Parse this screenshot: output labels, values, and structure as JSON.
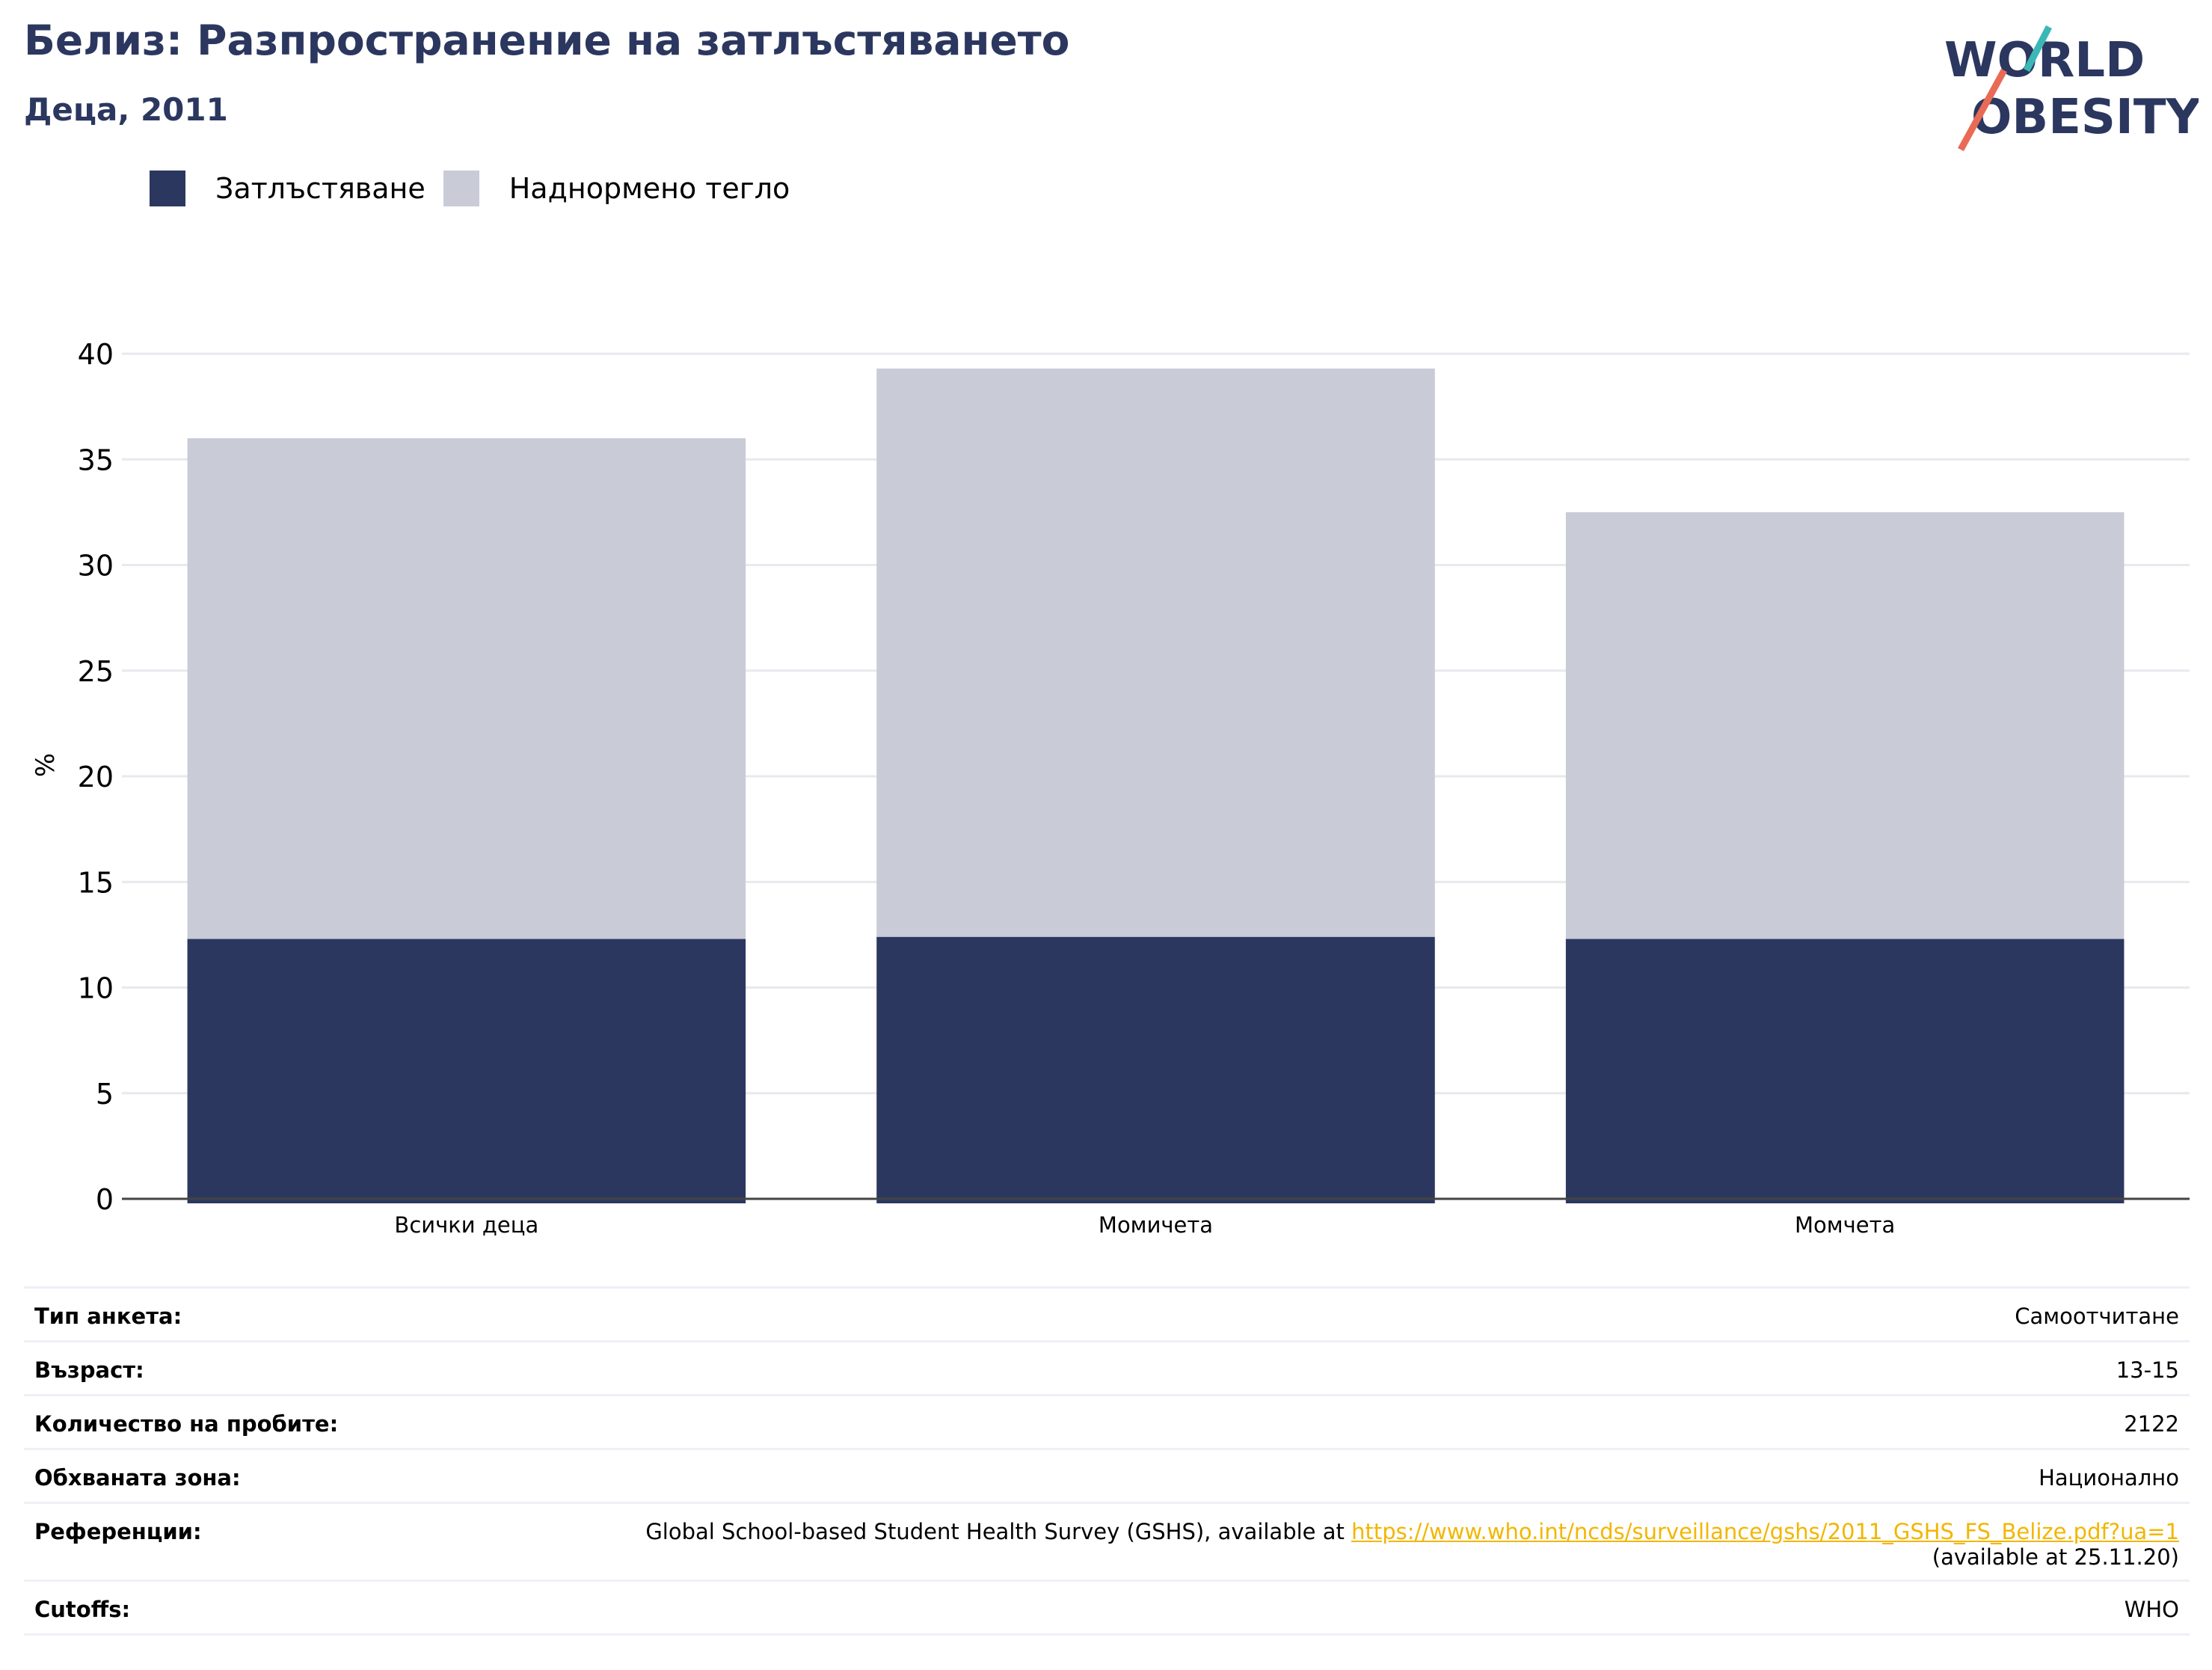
{
  "header": {
    "title": "Белиз: Разпространение на затлъстяването",
    "subtitle": "Деца, 2011"
  },
  "logo": {
    "line1": "WORLD",
    "line2": "OBESITY"
  },
  "colors": {
    "obesity": "#2b375f",
    "overweight": "#c9cbd6",
    "title": "#2b375f",
    "grid": "#e8e9ee",
    "axis": "#444444",
    "link": "#f2b600",
    "logo_teal": "#3bb8b5",
    "logo_coral": "#e96a55"
  },
  "legend": [
    {
      "label": "Затлъстяване",
      "color": "#2b375f"
    },
    {
      "label": "Наднормено тегло",
      "color": "#c9cbd6"
    }
  ],
  "chart_data": {
    "type": "bar",
    "stacked": true,
    "categories": [
      "Всички деца",
      "Момичета",
      "Момчета"
    ],
    "series": [
      {
        "name": "Затлъстяване",
        "values": [
          12.3,
          12.4,
          12.3
        ]
      },
      {
        "name": "Наднормено тегло",
        "values": [
          23.7,
          26.9,
          20.2
        ]
      }
    ],
    "ylabel": "%",
    "ylim": [
      0,
      40
    ],
    "yticks": [
      0,
      5,
      10,
      15,
      20,
      25,
      30,
      35,
      40
    ],
    "grid": true,
    "legend_position": "top-left"
  },
  "info": {
    "survey_type": {
      "label": "Тип анкета:",
      "value": "Самоотчитане"
    },
    "age": {
      "label": "Възраст:",
      "value": "13-15"
    },
    "sample_size": {
      "label": "Количество на пробите:",
      "value": "2122"
    },
    "area": {
      "label": "Обхваната зона:",
      "value": "Национално"
    },
    "references": {
      "label": "Референции:",
      "text": "Global School-based Student Health Survey (GSHS), available at ",
      "link": "https://www.who.int/ncds/surveillance/gshs/2011_GSHS_FS_Belize.pdf?ua=1",
      "suffix": "(available at 25.11.20)"
    },
    "cutoffs": {
      "label": "Cutoffs:",
      "value": "WHO"
    }
  }
}
